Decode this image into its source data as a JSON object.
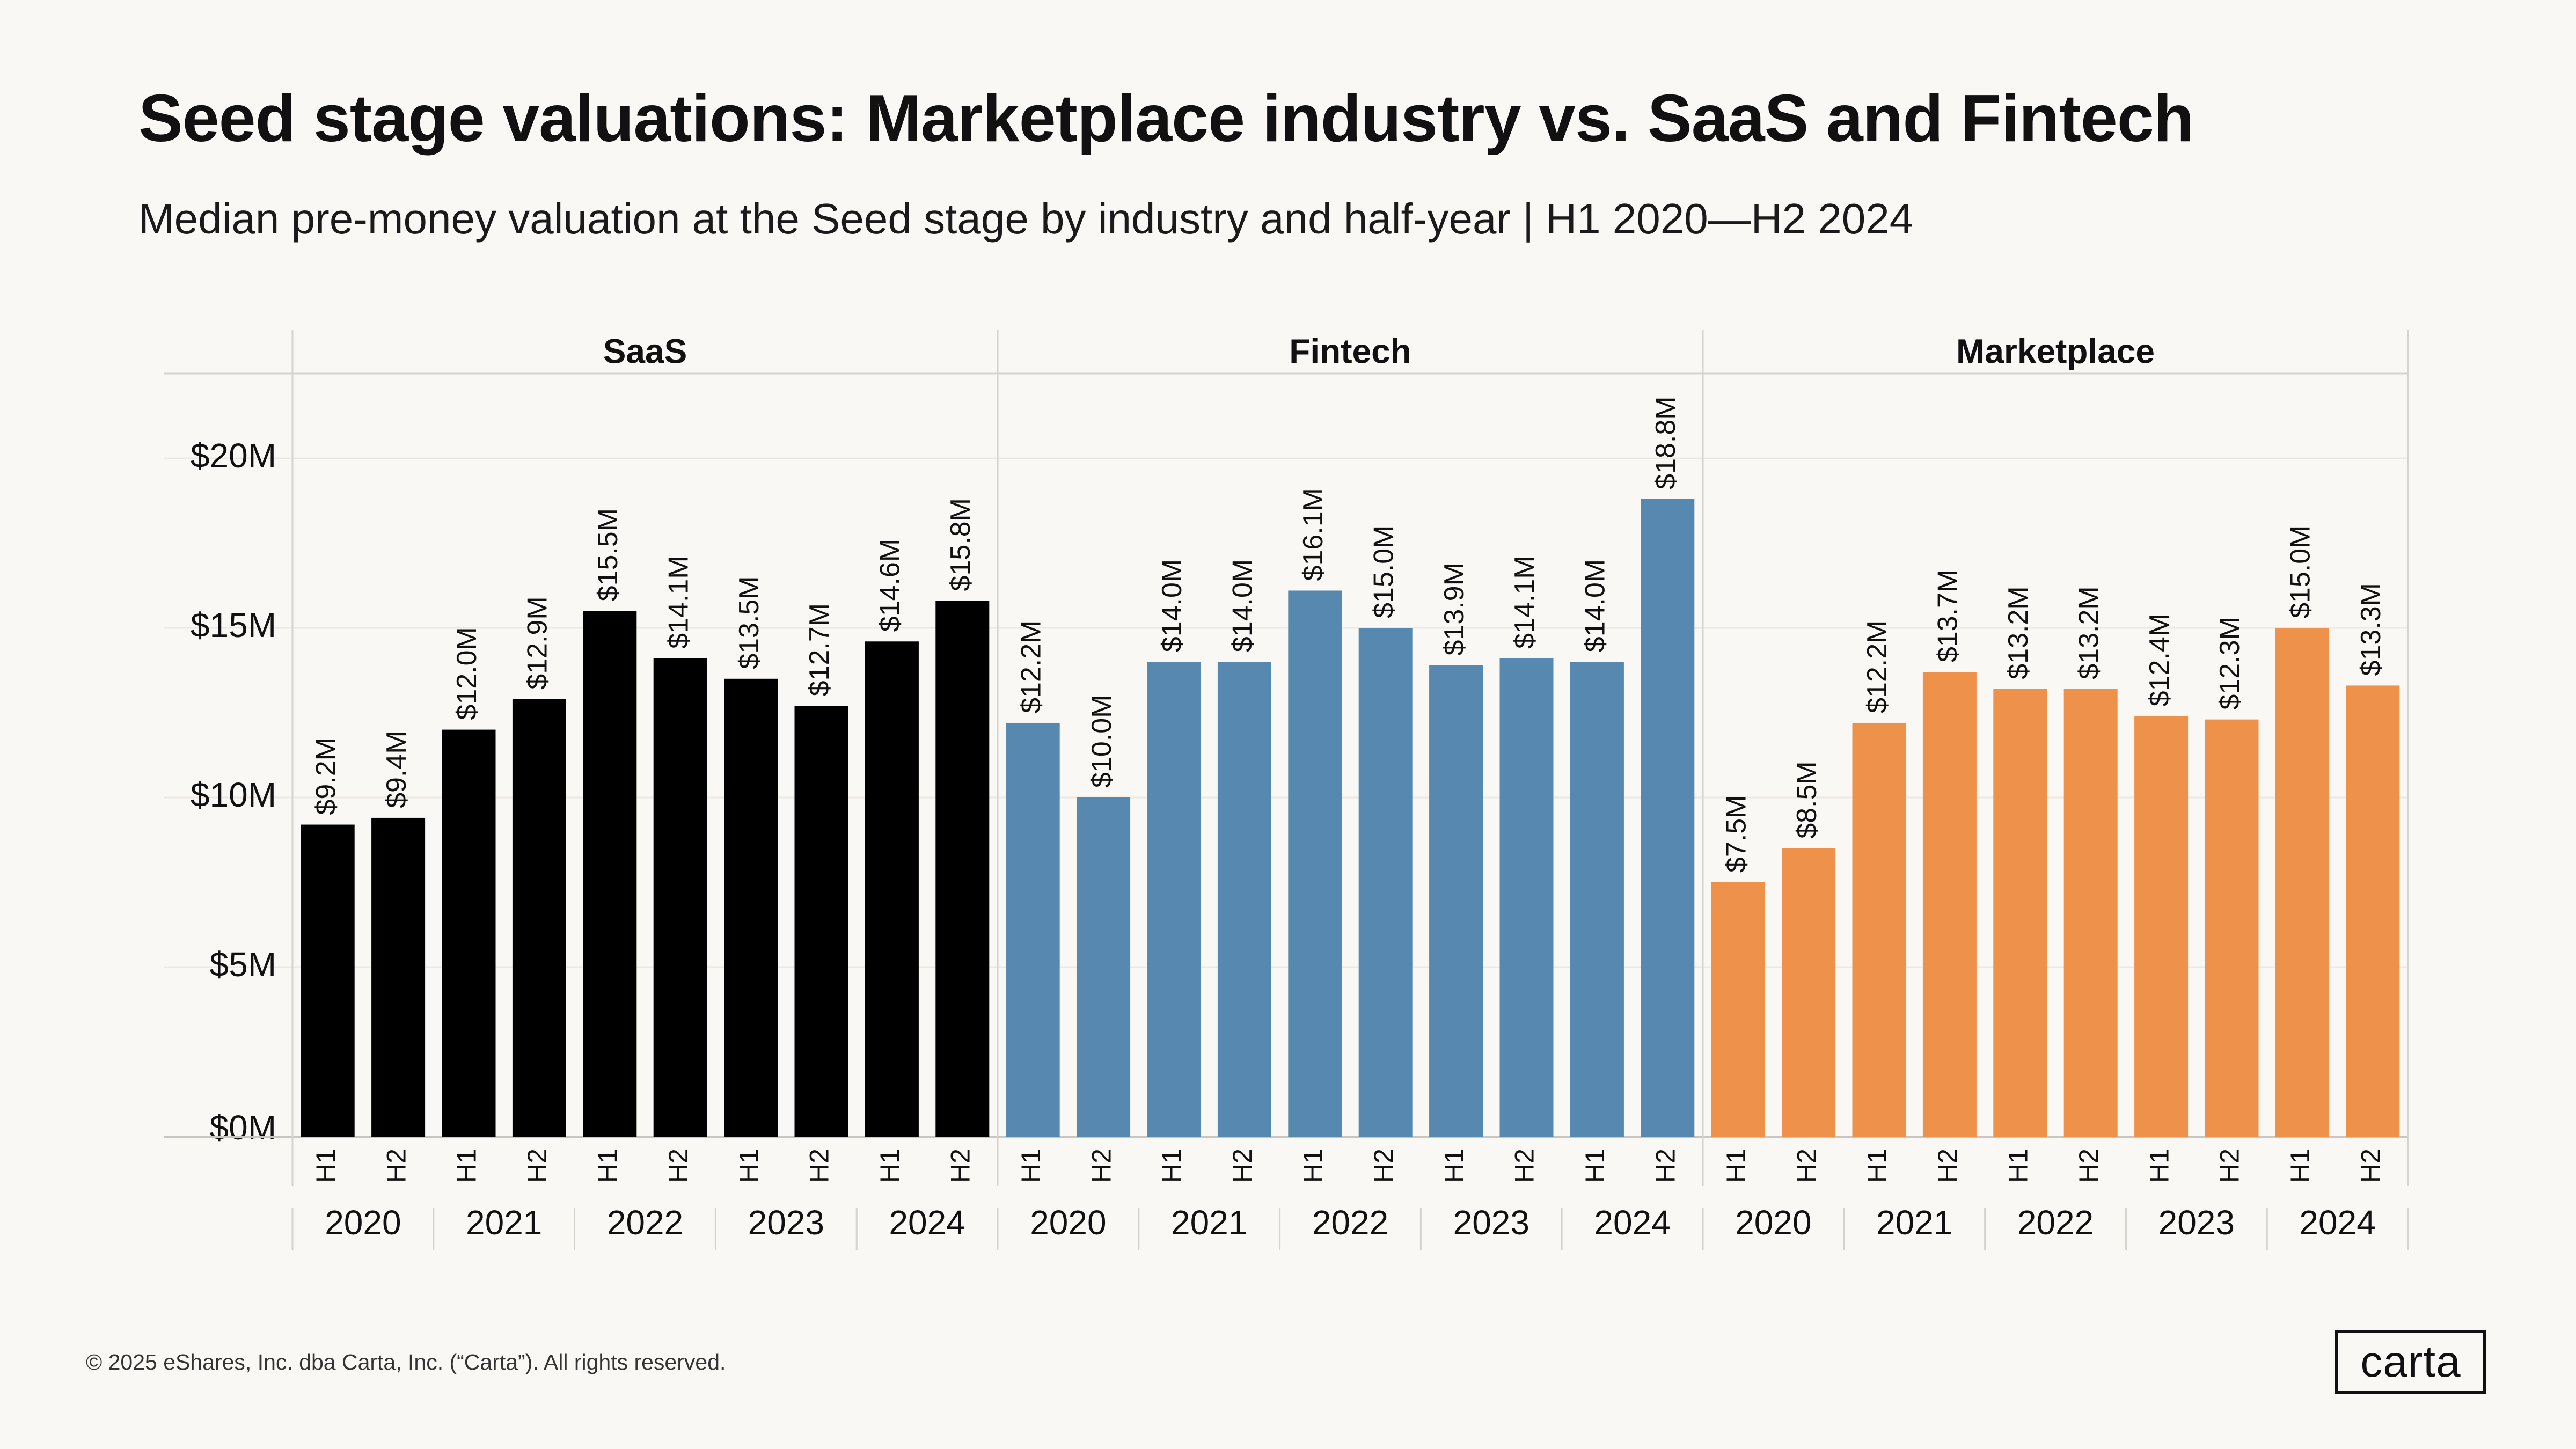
{
  "title": "Seed stage valuations: Marketplace industry vs. SaaS and Fintech",
  "subtitle": "Median pre-money valuation at the Seed stage by industry and half-year | H1 2020—H2 2024",
  "footer": "© 2025 eShares, Inc. dba Carta, Inc. (“Carta”). All rights reserved.",
  "logo_text": "carta",
  "chart_data": {
    "type": "bar",
    "y_ticks": [
      {
        "value": 0,
        "label": "$0M"
      },
      {
        "value": 5,
        "label": "$5M"
      },
      {
        "value": 10,
        "label": "$10M"
      },
      {
        "value": 15,
        "label": "$15M"
      },
      {
        "value": 20,
        "label": "$20M"
      }
    ],
    "ylim": [
      0,
      22.5
    ],
    "years": [
      "2020",
      "2021",
      "2022",
      "2023",
      "2024"
    ],
    "halves": [
      "H1",
      "H2"
    ],
    "panels": [
      {
        "name": "SaaS",
        "color": "#000000",
        "values": [
          9.2,
          9.4,
          12.0,
          12.9,
          15.5,
          14.1,
          13.5,
          12.7,
          14.6,
          15.8
        ],
        "labels": [
          "$9.2M",
          "$9.4M",
          "$12.0M",
          "$12.9M",
          "$15.5M",
          "$14.1M",
          "$13.5M",
          "$12.7M",
          "$14.6M",
          "$15.8M"
        ]
      },
      {
        "name": "Fintech",
        "color": "#5688b0",
        "values": [
          12.2,
          10.0,
          14.0,
          14.0,
          16.1,
          15.0,
          13.9,
          14.1,
          14.0,
          18.8
        ],
        "labels": [
          "$12.2M",
          "$10.0M",
          "$14.0M",
          "$14.0M",
          "$16.1M",
          "$15.0M",
          "$13.9M",
          "$14.1M",
          "$14.0M",
          "$18.8M"
        ]
      },
      {
        "name": "Marketplace",
        "color": "#ee914a",
        "values": [
          7.5,
          8.5,
          12.2,
          13.7,
          13.2,
          13.2,
          12.4,
          12.3,
          15.0,
          13.3
        ],
        "labels": [
          "$7.5M",
          "$8.5M",
          "$12.2M",
          "$13.7M",
          "$13.2M",
          "$13.2M",
          "$12.4M",
          "$12.3M",
          "$15.0M",
          "$13.3M"
        ]
      }
    ]
  }
}
